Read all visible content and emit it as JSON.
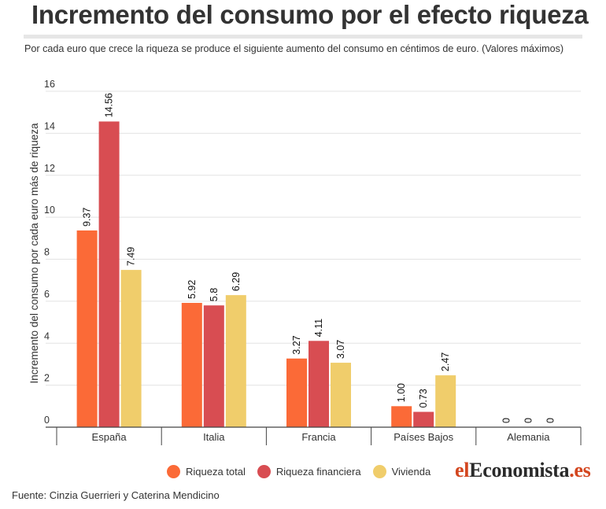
{
  "title": "Incremento del consumo por el efecto riqueza",
  "subtitle": "Por cada euro que crece la riqueza se produce el siguiente aumento del consumo en céntimos de euro. (Valores máximos)",
  "source": "Fuente: Cinzia Guerrieri y Caterina Mendicino",
  "logo": {
    "part1": "el",
    "part2": "Economista",
    "part3": ".es"
  },
  "chart_data": {
    "type": "bar",
    "ylabel": "Incremento del consumo por cada euro más de riqueza",
    "xlabel": "",
    "ylim": [
      0,
      16
    ],
    "yticks": [
      0,
      2,
      4,
      6,
      8,
      10,
      12,
      14,
      16
    ],
    "grid": true,
    "legend_position": "bottom",
    "categories": [
      "España",
      "Italia",
      "Francia",
      "Países Bajos",
      "Alemania"
    ],
    "series": [
      {
        "name": "Riqueza total",
        "color": "#fb6a37",
        "values": [
          9.37,
          5.92,
          3.27,
          1.0,
          0
        ],
        "labels": [
          "9.37",
          "5.92",
          "3.27",
          "1.00",
          "0"
        ]
      },
      {
        "name": "Riqueza financiera",
        "color": "#d84d52",
        "values": [
          14.56,
          5.8,
          4.11,
          0.73,
          0
        ],
        "labels": [
          "14.56",
          "5.8",
          "4.11",
          "0.73",
          "0"
        ]
      },
      {
        "name": "Vivienda",
        "color": "#f0cd6b",
        "values": [
          7.49,
          6.29,
          3.07,
          2.47,
          0
        ],
        "labels": [
          "7.49",
          "6.29",
          "3.07",
          "2.47",
          "0"
        ]
      }
    ]
  }
}
